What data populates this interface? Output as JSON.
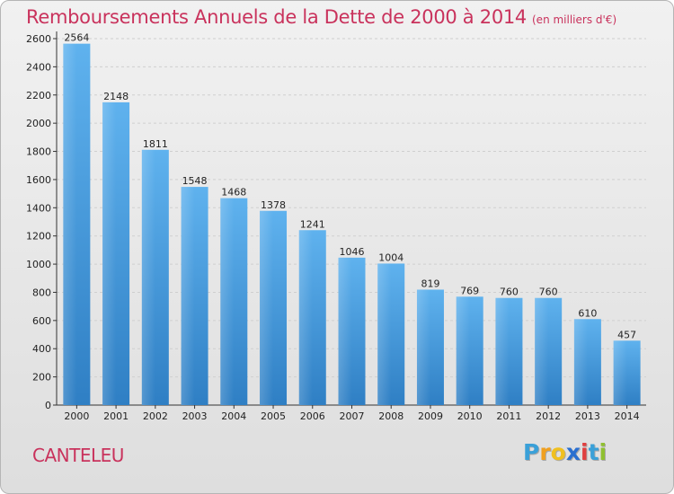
{
  "chart_data": {
    "type": "bar",
    "title": "Remboursements Annuels de la Dette de 2000 à 2014",
    "subtitle": "(en milliers d'€)",
    "categories": [
      "2000",
      "2001",
      "2002",
      "2003",
      "2004",
      "2005",
      "2006",
      "2007",
      "2008",
      "2009",
      "2010",
      "2011",
      "2012",
      "2013",
      "2014"
    ],
    "values": [
      2564,
      2148,
      1811,
      1548,
      1468,
      1378,
      1241,
      1046,
      1004,
      819,
      769,
      760,
      760,
      610,
      457
    ],
    "xlabel": "",
    "ylabel": "",
    "ylim": [
      0,
      2600
    ],
    "yticks": [
      0,
      200,
      400,
      600,
      800,
      1000,
      1200,
      1400,
      1600,
      1800,
      2000,
      2200,
      2400,
      2600
    ],
    "grid": true,
    "bar_color": "#4fa3e6"
  },
  "footer": {
    "city": "CANTELEU",
    "logo_letters": [
      "P",
      "r",
      "o",
      "x",
      "i",
      "t",
      "i"
    ],
    "logo_colors": [
      "#3aa0d8",
      "#f0a020",
      "#f0c020",
      "#2a6fd0",
      "#e04040",
      "#3aa0d8",
      "#90c030"
    ]
  }
}
